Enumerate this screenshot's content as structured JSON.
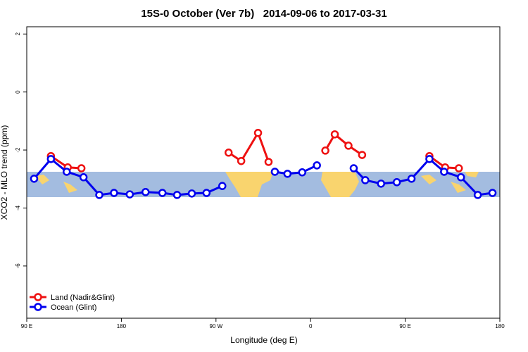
{
  "chart_data": {
    "type": "line",
    "title": "15S-0 October (Ver 7b)   2014-09-06 to 2017-03-31",
    "x_label": "Longitude (deg E)",
    "y_label": "XCO2 - MLO trend (ppm)",
    "xlim": [
      90,
      540
    ],
    "ylim": [
      -7.8,
      2.25
    ],
    "xticks": [
      {
        "value": 90,
        "label": "90 E"
      },
      180,
      {
        "value": 270,
        "label": "90 W"
      },
      {
        "value": 360,
        "label": "0"
      },
      {
        "value": 450,
        "label": "90 E"
      },
      {
        "value": 540,
        "label": "180"
      }
    ],
    "yticks": [
      2,
      0,
      -2,
      -4,
      -6
    ],
    "legend": "bottom-left",
    "series": [
      {
        "name": "Land (Nadir&Glint)",
        "color": "#ee1111",
        "x": [
          113,
          129,
          142,
          null,
          282,
          294,
          310,
          320,
          null,
          374,
          383,
          396,
          409,
          null,
          473,
          488,
          501
        ],
        "values": [
          -2.21,
          -2.6,
          -2.63,
          null,
          -2.09,
          -2.38,
          -1.41,
          -2.41,
          null,
          -2.02,
          -1.46,
          -1.85,
          -2.17,
          null,
          -2.21,
          -2.6,
          -2.63
        ]
      },
      {
        "name": "Ocean (Glint)",
        "color": "#0000ee",
        "x": [
          97,
          113,
          128,
          144,
          159,
          173,
          188,
          203,
          219,
          233,
          247,
          261,
          276,
          null,
          326,
          338,
          352,
          366,
          null,
          401,
          412,
          427,
          442,
          456,
          473,
          487,
          503,
          519,
          533
        ],
        "values": [
          -2.99,
          -2.31,
          -2.75,
          -2.94,
          -3.55,
          -3.48,
          -3.53,
          -3.45,
          -3.48,
          -3.55,
          -3.5,
          -3.48,
          -3.24,
          null,
          -2.75,
          -2.82,
          -2.77,
          -2.53,
          null,
          -2.63,
          -3.04,
          -3.16,
          -3.11,
          -2.99,
          -2.31,
          -2.75,
          -2.94,
          -3.55,
          -3.48
        ]
      }
    ]
  }
}
